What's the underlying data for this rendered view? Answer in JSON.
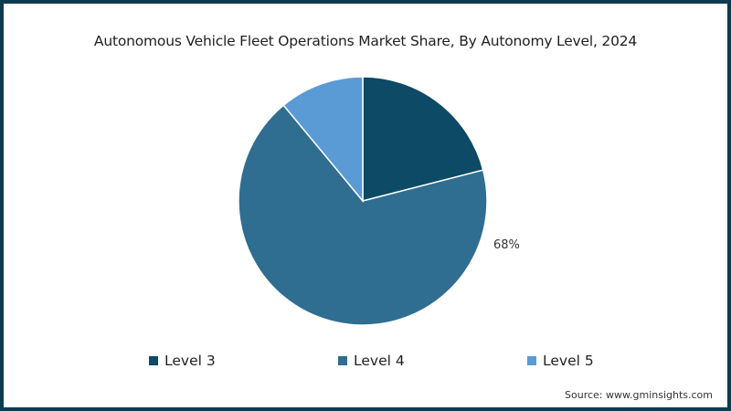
{
  "chart_data": {
    "type": "pie",
    "title": "Autonomous Vehicle Fleet Operations Market Share, By Autonomy Level, 2024",
    "categories": [
      "Level 3",
      "Level 4",
      "Level 5"
    ],
    "values": [
      21,
      68,
      11
    ],
    "colors": [
      "#0d4a66",
      "#2f6d91",
      "#5b9bd5"
    ],
    "data_labels": [
      {
        "category": "Level 4",
        "text": "68%"
      }
    ],
    "legend_position": "bottom",
    "start_angle": "12 o'clock, clockwise"
  },
  "title": "Autonomous Vehicle Fleet Operations Market Share, By Autonomy Level, 2024",
  "legend": [
    {
      "label": "Level 3",
      "color": "#0d4a66"
    },
    {
      "label": "Level 4",
      "color": "#2f6d91"
    },
    {
      "label": "Level 5",
      "color": "#5b9bd5"
    }
  ],
  "label_level4": "68%",
  "source": "Source: www.gminsights.com",
  "frame_color": "#0d3b4f"
}
